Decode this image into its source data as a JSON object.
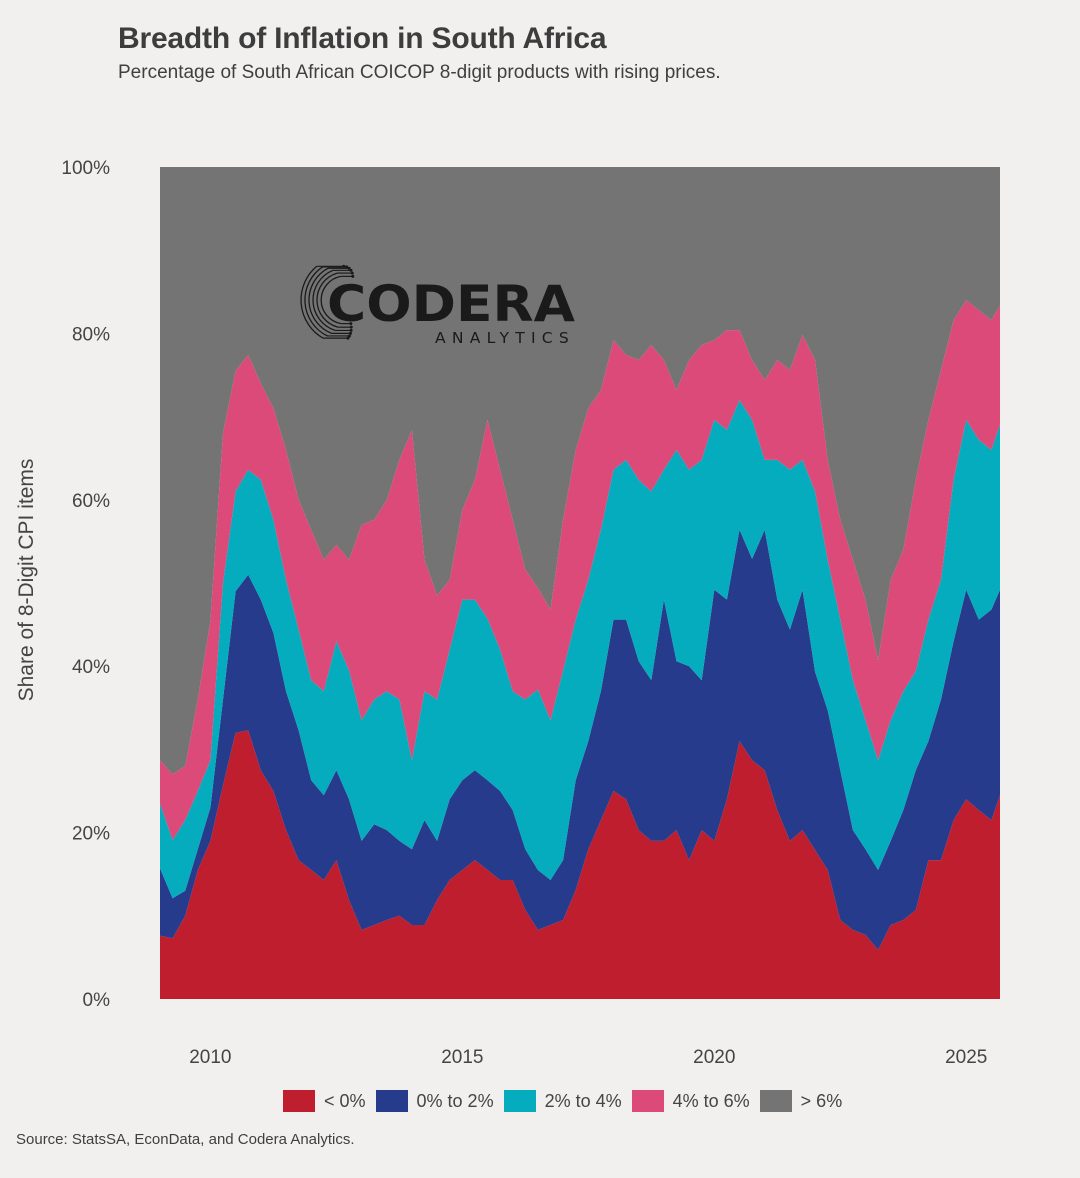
{
  "title": "Breadth of Inflation in South Africa",
  "subtitle": "Percentage of South African COICOP 8-digit products with rising prices.",
  "source": "Source: StatsSA, EconData, and Codera Analytics.",
  "logo": {
    "name": "CODERA",
    "tagline": "ANALYTICS"
  },
  "chart_data": {
    "type": "area",
    "stacked": true,
    "title": "Breadth of Inflation in South Africa",
    "subtitle": "Percentage of South African COICOP 8-digit products with rising prices.",
    "xlabel": "",
    "ylabel": "Share of 8-Digit CPI items",
    "xlim": [
      2009.0,
      2025.67
    ],
    "ylim": [
      0,
      100
    ],
    "x_ticks": [
      2010,
      2015,
      2020,
      2025
    ],
    "x_tick_labels": [
      "2010",
      "2015",
      "2020",
      "2025"
    ],
    "y_ticks": [
      0,
      20,
      40,
      60,
      80,
      100
    ],
    "y_tick_labels": [
      "0%",
      "20%",
      "40%",
      "60%",
      "80%",
      "100%"
    ],
    "grid": false,
    "legend_position": "bottom",
    "x": [
      2009.0,
      2009.25,
      2009.5,
      2009.75,
      2010.0,
      2010.25,
      2010.5,
      2010.75,
      2011.0,
      2011.25,
      2011.5,
      2011.75,
      2012.0,
      2012.25,
      2012.5,
      2012.75,
      2013.0,
      2013.25,
      2013.5,
      2013.75,
      2014.0,
      2014.25,
      2014.5,
      2014.75,
      2015.0,
      2015.25,
      2015.5,
      2015.75,
      2016.0,
      2016.25,
      2016.5,
      2016.75,
      2017.0,
      2017.25,
      2017.5,
      2017.75,
      2018.0,
      2018.25,
      2018.5,
      2018.75,
      2019.0,
      2019.25,
      2019.5,
      2019.75,
      2020.0,
      2020.25,
      2020.5,
      2020.75,
      2021.0,
      2021.25,
      2021.5,
      2021.75,
      2022.0,
      2022.25,
      2022.5,
      2022.75,
      2023.0,
      2023.25,
      2023.5,
      2023.75,
      2024.0,
      2024.25,
      2024.5,
      2024.75,
      2025.0,
      2025.25,
      2025.5,
      2025.67
    ],
    "series": [
      {
        "name": "< 0%",
        "color": "#be1e2d",
        "values": [
          7.6,
          7.3,
          10.0,
          15.5,
          19.0,
          25.7,
          32.0,
          32.3,
          27.5,
          25.0,
          20.3,
          16.7,
          15.5,
          14.3,
          16.7,
          11.9,
          8.3,
          8.9,
          9.5,
          10.0,
          8.9,
          8.9,
          11.9,
          14.3,
          15.5,
          16.7,
          15.5,
          14.3,
          14.3,
          10.7,
          8.3,
          8.9,
          9.5,
          13.1,
          18.0,
          21.5,
          25.0,
          24.0,
          20.3,
          19.0,
          19.0,
          20.3,
          16.7,
          20.3,
          19.0,
          24.0,
          31.0,
          28.7,
          27.5,
          22.7,
          19.0,
          20.3,
          17.9,
          15.5,
          9.5,
          8.3,
          7.7,
          5.9,
          8.9,
          9.5,
          10.7,
          16.7,
          16.7,
          21.5,
          24.0,
          22.7,
          21.5,
          24.5
        ]
      },
      {
        "name": "0% to 2%",
        "color": "#273b8c",
        "values": [
          8.1,
          4.8,
          3.0,
          2.5,
          4.0,
          10.3,
          17.0,
          18.7,
          20.5,
          19.0,
          16.7,
          15.6,
          10.8,
          10.2,
          10.8,
          12.1,
          10.7,
          12.1,
          10.8,
          9.0,
          9.1,
          12.6,
          7.1,
          9.7,
          10.8,
          10.8,
          10.8,
          10.7,
          8.4,
          7.3,
          7.2,
          5.4,
          7.2,
          13.2,
          13.0,
          15.5,
          20.6,
          21.6,
          20.3,
          19.3,
          29.0,
          20.3,
          23.3,
          18.0,
          30.2,
          24.0,
          25.4,
          24.2,
          28.9,
          25.3,
          25.4,
          28.9,
          21.4,
          19.2,
          18.0,
          12.0,
          10.3,
          9.6,
          10.1,
          13.2,
          16.8,
          14.3,
          19.3,
          21.5,
          25.2,
          22.9,
          25.3,
          24.7
        ]
      },
      {
        "name": "2% to 4%",
        "color": "#05acbd",
        "values": [
          7.8,
          7.0,
          8.5,
          7.0,
          5.7,
          14.0,
          12.0,
          12.6,
          14.4,
          13.6,
          13.4,
          12.1,
          12.0,
          12.5,
          15.5,
          15.5,
          14.5,
          15.0,
          16.7,
          17.0,
          10.7,
          15.5,
          17.0,
          18.0,
          21.7,
          20.5,
          19.4,
          17.0,
          14.3,
          18.0,
          21.7,
          19.2,
          22.8,
          19.3,
          19.4,
          19.4,
          18.0,
          19.2,
          21.8,
          22.7,
          15.6,
          25.4,
          23.6,
          26.5,
          20.4,
          20.4,
          15.6,
          16.7,
          8.4,
          16.8,
          19.2,
          15.6,
          21.7,
          18.1,
          18.1,
          18.0,
          15.5,
          13.2,
          14.5,
          14.3,
          11.9,
          14.6,
          14.4,
          19.4,
          20.4,
          21.6,
          19.2,
          19.8
        ]
      },
      {
        "name": "4% to 6%",
        "color": "#db4a79",
        "values": [
          5.2,
          7.9,
          6.5,
          11.0,
          16.8,
          18.0,
          14.5,
          13.8,
          11.6,
          13.4,
          15.6,
          15.6,
          18.1,
          15.8,
          11.6,
          13.3,
          23.5,
          21.6,
          23.0,
          28.8,
          39.7,
          15.8,
          12.5,
          8.4,
          10.8,
          14.4,
          23.9,
          21.6,
          20.6,
          15.6,
          12.2,
          13.3,
          18.1,
          20.4,
          20.6,
          16.8,
          15.6,
          12.6,
          14.4,
          17.6,
          13.2,
          7.2,
          13.2,
          13.8,
          9.6,
          12.0,
          8.4,
          7.2,
          9.6,
          12.0,
          12.0,
          15.0,
          15.8,
          12.0,
          12.0,
          14.5,
          14.5,
          12.0,
          16.9,
          17.0,
          23.0,
          24.0,
          25.2,
          19.2,
          14.4,
          15.6,
          15.6,
          14.4
        ]
      },
      {
        "name": "> 6%",
        "color": "#747474",
        "values": [
          71.3,
          73.0,
          72.0,
          64.0,
          54.5,
          32.0,
          24.5,
          22.6,
          26.0,
          29.0,
          34.0,
          40.0,
          43.6,
          47.2,
          45.4,
          47.2,
          43.0,
          42.4,
          40.0,
          35.2,
          31.6,
          47.2,
          51.5,
          49.6,
          41.2,
          37.6,
          30.4,
          36.4,
          42.4,
          48.4,
          50.8,
          53.2,
          42.4,
          34.0,
          29.0,
          26.8,
          20.8,
          22.6,
          23.2,
          21.4,
          23.2,
          26.8,
          23.2,
          21.4,
          20.8,
          19.6,
          19.6,
          23.2,
          25.6,
          23.2,
          24.4,
          20.2,
          23.2,
          35.2,
          42.4,
          47.2,
          52.0,
          59.3,
          49.6,
          46.0,
          37.6,
          30.4,
          24.4,
          18.4,
          16.0,
          17.2,
          18.4,
          16.6
        ]
      }
    ]
  }
}
